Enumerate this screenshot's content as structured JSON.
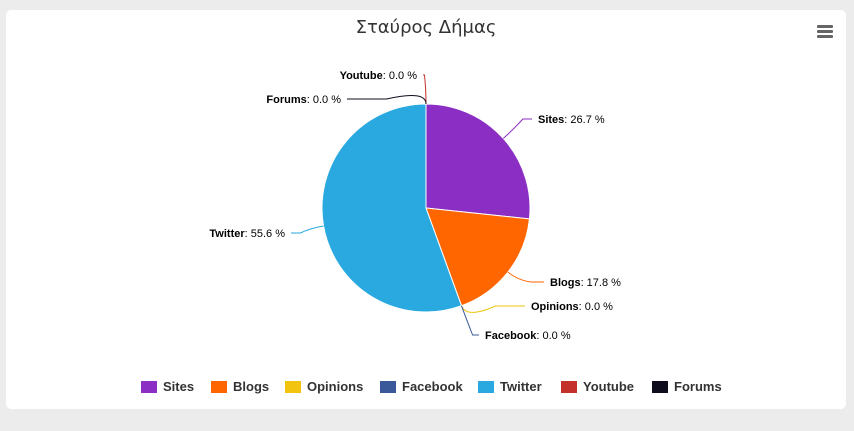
{
  "header": {
    "title": "Σταύρος Δήμας",
    "menu_icon": "hamburger-menu-icon"
  },
  "chart_data": {
    "type": "pie",
    "title": "Σταύρος Δήμας",
    "value_suffix": " %",
    "legend_position": "bottom",
    "slices": [
      {
        "name": "Sites",
        "value": 26.7,
        "label_value": "26.7 %",
        "color": "#8b2ec4"
      },
      {
        "name": "Blogs",
        "value": 17.8,
        "label_value": "17.8 %",
        "color": "#ff6600"
      },
      {
        "name": "Opinions",
        "value": 0.0,
        "label_value": "0.0 %",
        "color": "#f2c40f"
      },
      {
        "name": "Facebook",
        "value": 0.0,
        "label_value": "0.0 %",
        "color": "#3b5998"
      },
      {
        "name": "Twitter",
        "value": 55.6,
        "label_value": "55.6 %",
        "color": "#29a9e0"
      },
      {
        "name": "Youtube",
        "value": 0.0,
        "label_value": "0.0 %",
        "color": "#c4302b"
      },
      {
        "name": "Forums",
        "value": 0.0,
        "label_value": "0.0 %",
        "color": "#0d0d1e"
      }
    ]
  }
}
